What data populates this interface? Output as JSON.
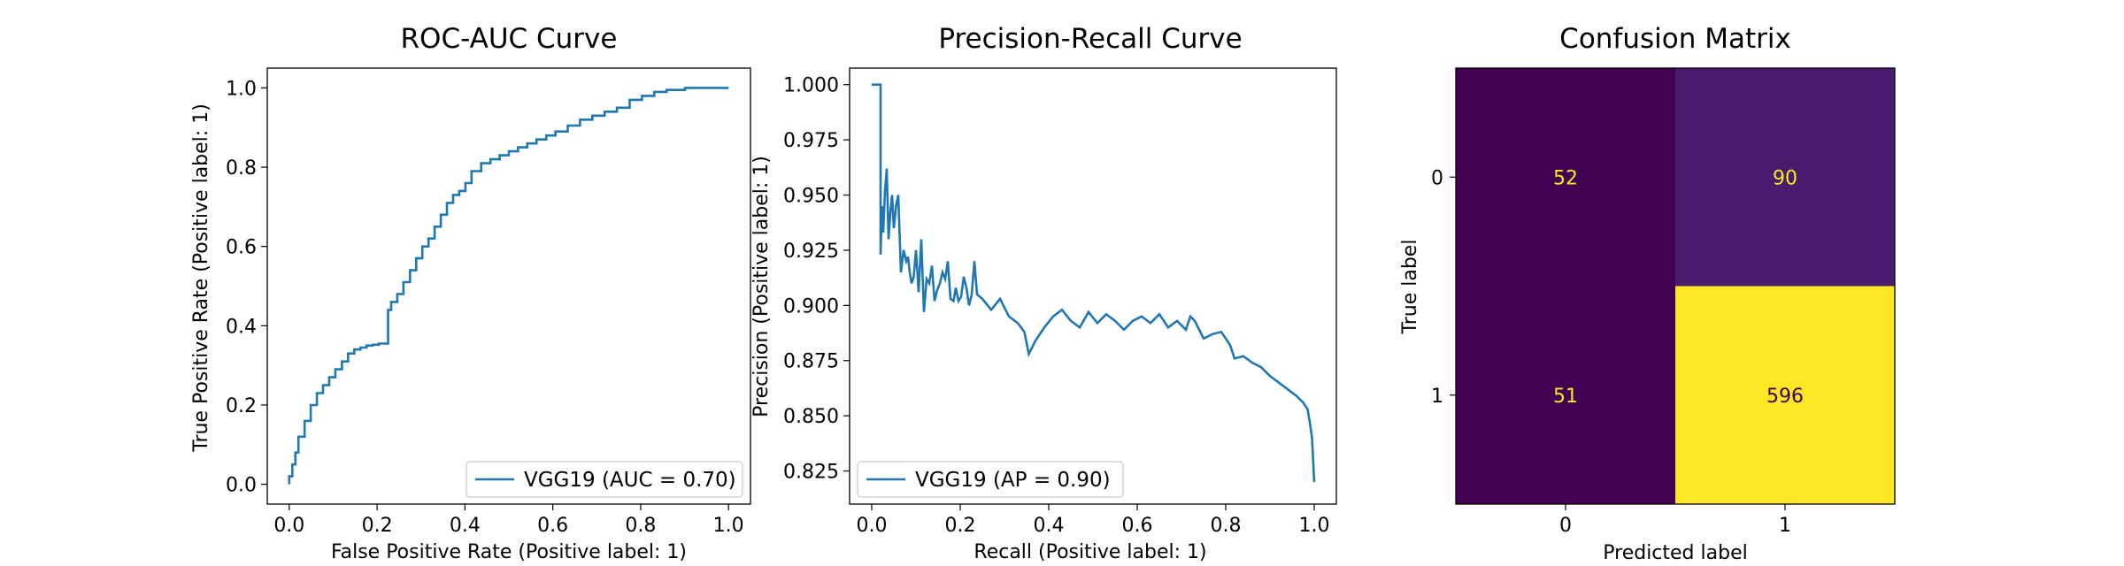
{
  "figure": {
    "charts": 3
  },
  "chart_data": [
    {
      "type": "line",
      "title": "ROC-AUC Curve",
      "xlabel": "False Positive Rate (Positive label: 1)",
      "ylabel": "True Positive Rate (Positive label: 1)",
      "xlim": [
        -0.05,
        1.05
      ],
      "ylim": [
        -0.05,
        1.05
      ],
      "xticks": [
        "0.0",
        "0.2",
        "0.4",
        "0.6",
        "0.8",
        "1.0"
      ],
      "yticks": [
        "0.0",
        "0.2",
        "0.4",
        "0.6",
        "0.8",
        "1.0"
      ],
      "legend": "VGG19 (AUC = 0.70)",
      "legend_position": "lower-right",
      "color": "#1f77b4",
      "series": [
        {
          "name": "VGG19",
          "x": [
            0.0,
            0.0,
            0.007,
            0.007,
            0.014,
            0.014,
            0.021,
            0.021,
            0.035,
            0.035,
            0.049,
            0.049,
            0.063,
            0.063,
            0.077,
            0.077,
            0.091,
            0.091,
            0.105,
            0.105,
            0.12,
            0.12,
            0.134,
            0.134,
            0.148,
            0.148,
            0.162,
            0.162,
            0.176,
            0.176,
            0.19,
            0.19,
            0.204,
            0.204,
            0.225,
            0.225,
            0.232,
            0.232,
            0.246,
            0.246,
            0.26,
            0.26,
            0.275,
            0.275,
            0.289,
            0.289,
            0.303,
            0.303,
            0.317,
            0.317,
            0.331,
            0.331,
            0.345,
            0.345,
            0.359,
            0.359,
            0.373,
            0.373,
            0.387,
            0.387,
            0.401,
            0.401,
            0.415,
            0.415,
            0.437,
            0.437,
            0.458,
            0.458,
            0.479,
            0.479,
            0.5,
            0.5,
            0.521,
            0.521,
            0.542,
            0.542,
            0.563,
            0.563,
            0.585,
            0.585,
            0.606,
            0.606,
            0.634,
            0.634,
            0.662,
            0.662,
            0.69,
            0.69,
            0.718,
            0.718,
            0.746,
            0.746,
            0.775,
            0.775,
            0.803,
            0.803,
            0.831,
            0.831,
            0.859,
            0.859,
            0.901,
            0.901,
            0.944,
            0.944,
            1.0
          ],
          "y": [
            0.0,
            0.02,
            0.02,
            0.05,
            0.05,
            0.08,
            0.08,
            0.12,
            0.12,
            0.16,
            0.16,
            0.2,
            0.2,
            0.23,
            0.23,
            0.25,
            0.25,
            0.27,
            0.27,
            0.29,
            0.29,
            0.31,
            0.31,
            0.33,
            0.33,
            0.34,
            0.34,
            0.345,
            0.345,
            0.35,
            0.35,
            0.352,
            0.352,
            0.355,
            0.355,
            0.44,
            0.44,
            0.46,
            0.46,
            0.48,
            0.48,
            0.51,
            0.51,
            0.54,
            0.54,
            0.57,
            0.57,
            0.6,
            0.6,
            0.62,
            0.62,
            0.65,
            0.65,
            0.68,
            0.68,
            0.71,
            0.71,
            0.73,
            0.73,
            0.74,
            0.74,
            0.76,
            0.76,
            0.79,
            0.79,
            0.81,
            0.81,
            0.82,
            0.82,
            0.83,
            0.83,
            0.84,
            0.84,
            0.85,
            0.85,
            0.86,
            0.86,
            0.87,
            0.87,
            0.88,
            0.88,
            0.89,
            0.89,
            0.905,
            0.905,
            0.92,
            0.92,
            0.93,
            0.93,
            0.94,
            0.94,
            0.95,
            0.95,
            0.97,
            0.97,
            0.98,
            0.98,
            0.99,
            0.99,
            0.995,
            0.995,
            1.0,
            1.0,
            1.0,
            1.0
          ]
        }
      ]
    },
    {
      "type": "line",
      "title": "Precision-Recall Curve",
      "xlabel": "Recall (Positive label: 1)",
      "ylabel": "Precision (Positive label: 1)",
      "xlim": [
        -0.05,
        1.05
      ],
      "ylim": [
        0.81,
        1.0075
      ],
      "xticks": [
        "0.0",
        "0.2",
        "0.4",
        "0.6",
        "0.8",
        "1.0"
      ],
      "yticks": [
        "0.825",
        "0.850",
        "0.875",
        "0.900",
        "0.925",
        "0.950",
        "0.975",
        "1.000"
      ],
      "legend": "VGG19 (AP = 0.90)",
      "legend_position": "lower-left",
      "color": "#1f77b4",
      "series": [
        {
          "name": "VGG19",
          "x": [
            0.0,
            0.02,
            0.02,
            0.023,
            0.026,
            0.03,
            0.034,
            0.038,
            0.042,
            0.046,
            0.05,
            0.055,
            0.06,
            0.066,
            0.072,
            0.078,
            0.082,
            0.086,
            0.09,
            0.095,
            0.1,
            0.106,
            0.112,
            0.118,
            0.124,
            0.13,
            0.136,
            0.142,
            0.148,
            0.154,
            0.16,
            0.166,
            0.172,
            0.178,
            0.185,
            0.19,
            0.196,
            0.202,
            0.208,
            0.214,
            0.22,
            0.226,
            0.232,
            0.238,
            0.25,
            0.27,
            0.29,
            0.31,
            0.33,
            0.345,
            0.355,
            0.37,
            0.39,
            0.41,
            0.43,
            0.45,
            0.47,
            0.49,
            0.51,
            0.53,
            0.55,
            0.57,
            0.59,
            0.61,
            0.63,
            0.65,
            0.67,
            0.69,
            0.71,
            0.72,
            0.73,
            0.75,
            0.77,
            0.79,
            0.81,
            0.82,
            0.84,
            0.86,
            0.88,
            0.9,
            0.92,
            0.94,
            0.96,
            0.975,
            0.985,
            0.99,
            0.995,
            1.0
          ],
          "y": [
            1.0,
            1.0,
            0.923,
            0.945,
            0.933,
            0.952,
            0.962,
            0.93,
            0.942,
            0.95,
            0.935,
            0.945,
            0.95,
            0.915,
            0.925,
            0.92,
            0.922,
            0.915,
            0.91,
            0.913,
            0.925,
            0.906,
            0.93,
            0.897,
            0.912,
            0.91,
            0.918,
            0.902,
            0.907,
            0.91,
            0.915,
            0.912,
            0.92,
            0.903,
            0.902,
            0.908,
            0.902,
            0.904,
            0.913,
            0.908,
            0.9,
            0.905,
            0.92,
            0.905,
            0.903,
            0.898,
            0.903,
            0.895,
            0.892,
            0.888,
            0.878,
            0.884,
            0.89,
            0.895,
            0.898,
            0.893,
            0.89,
            0.897,
            0.892,
            0.896,
            0.893,
            0.889,
            0.893,
            0.895,
            0.892,
            0.896,
            0.89,
            0.893,
            0.889,
            0.895,
            0.893,
            0.885,
            0.887,
            0.888,
            0.882,
            0.876,
            0.877,
            0.874,
            0.872,
            0.868,
            0.865,
            0.862,
            0.859,
            0.856,
            0.853,
            0.847,
            0.84,
            0.82
          ]
        }
      ]
    },
    {
      "type": "heatmap",
      "title": "Confusion Matrix",
      "xlabel": "Predicted label",
      "ylabel": "True label",
      "xticks": [
        "0",
        "1"
      ],
      "yticks": [
        "0",
        "1"
      ],
      "matrix": [
        [
          52,
          90
        ],
        [
          51,
          596
        ]
      ],
      "cell_colors": [
        [
          "#440154",
          "#481b6d"
        ],
        [
          "#440154",
          "#fde725"
        ]
      ],
      "text_colors": [
        [
          "#fde725",
          "#fde725"
        ],
        [
          "#fde725",
          "#440154"
        ]
      ]
    }
  ]
}
